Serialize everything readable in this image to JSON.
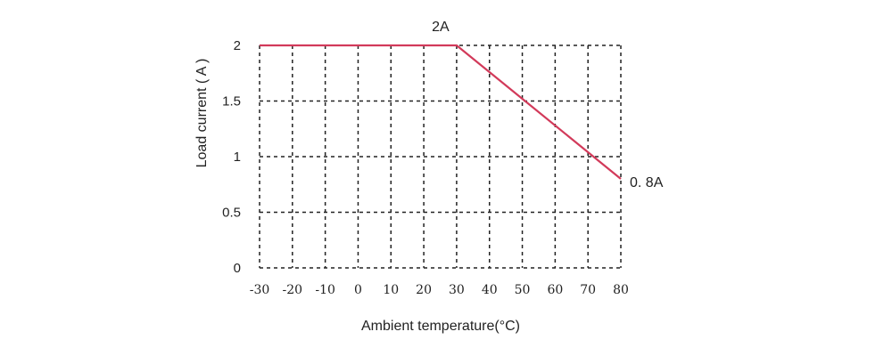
{
  "chart_data": {
    "type": "line",
    "xlabel": "Ambient temperature(°C)",
    "ylabel": "Load current ( A )",
    "xlim": [
      -30,
      80
    ],
    "ylim": [
      0,
      2
    ],
    "x_ticks": [
      -30,
      -20,
      -10,
      0,
      10,
      20,
      30,
      40,
      50,
      60,
      70,
      80
    ],
    "x_tick_labels": [
      "-30",
      "-20",
      "-10",
      "0",
      "10",
      "20",
      "30",
      "40",
      "50",
      "60",
      "70",
      "80"
    ],
    "y_ticks": [
      0,
      0.5,
      1,
      1.5,
      2
    ],
    "y_tick_labels": [
      "0",
      "0.5",
      "1",
      "1.5",
      "2"
    ],
    "grid": true,
    "series": [
      {
        "x": [
          -30,
          30,
          80
        ],
        "y": [
          2,
          2,
          0.8
        ],
        "color": "#d23a5a"
      }
    ],
    "annotations": [
      {
        "text": "2A",
        "x": 30,
        "y": 2
      },
      {
        "text": "0. 8A",
        "x": 80,
        "y": 0.8
      }
    ]
  }
}
